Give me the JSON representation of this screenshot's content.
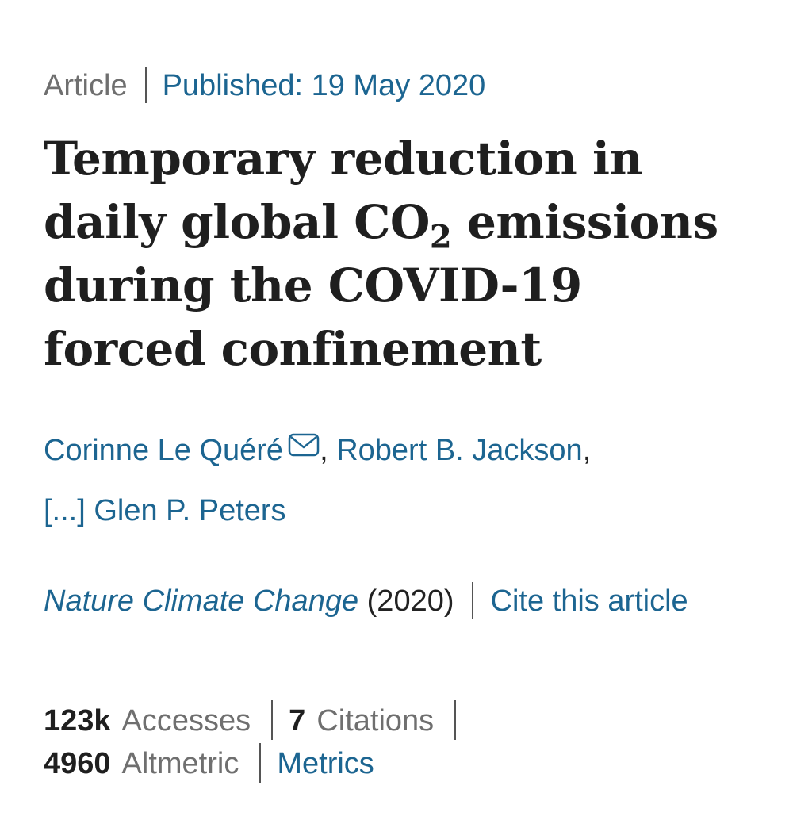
{
  "header": {
    "article_type": "Article",
    "published": "Published: 19 May 2020"
  },
  "title": {
    "part1": "Temporary reduction in daily global CO",
    "subscript": "2",
    "part2": " emissions during the COVID-19 forced confinement"
  },
  "authors": {
    "first": "Corinne Le Quéré",
    "second": "Robert B. Jackson",
    "ellipsis": "[...] Glen P. Peters",
    "comma": ","
  },
  "journal": {
    "name": "Nature Climate Change",
    "year": " (2020)",
    "cite_link": "Cite this article"
  },
  "metrics": {
    "accesses_value": "123k",
    "accesses_label": "Accesses",
    "citations_value": "7",
    "citations_label": "Citations",
    "altmetric_value": "4960",
    "altmetric_label": "Altmetric",
    "metrics_link": "Metrics"
  },
  "colors": {
    "link": "#1c6591",
    "muted": "#6f6f6f",
    "text": "#1f1f1f"
  },
  "icons": {
    "mail": "envelope-icon"
  }
}
